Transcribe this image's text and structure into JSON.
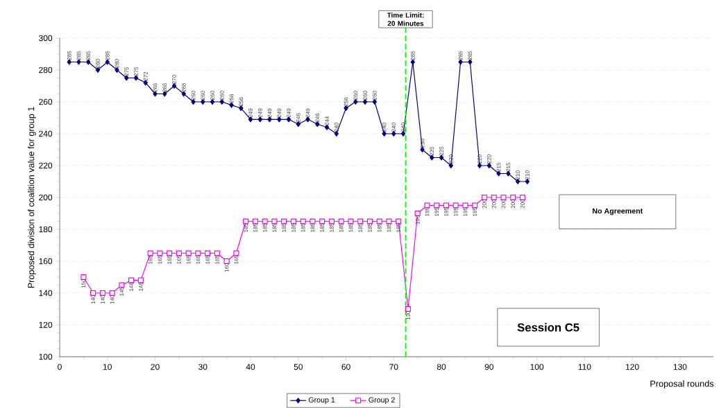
{
  "chart_data": {
    "type": "line",
    "xlabel": "Proposal rounds",
    "ylabel": "Proposed division of coalition value for group 1",
    "xlim": [
      0,
      137
    ],
    "xticks": [
      0,
      10,
      20,
      30,
      40,
      50,
      60,
      70,
      80,
      90,
      100,
      110,
      120,
      130
    ],
    "ylim": [
      100,
      300
    ],
    "yticks": [
      100,
      120,
      140,
      160,
      180,
      200,
      220,
      240,
      260,
      280,
      300
    ],
    "grid": "y",
    "legend": "bottom",
    "data_labels": true,
    "line_style": "solid",
    "series": [
      {
        "name": "Group 1",
        "color": "#000080",
        "marker": "diamond",
        "x": [
          2,
          4,
          6,
          8,
          10,
          12,
          14,
          16,
          18,
          20,
          22,
          24,
          26,
          28,
          30,
          32,
          34,
          36,
          38,
          40,
          42,
          44,
          46,
          48,
          50,
          52,
          54,
          56,
          58,
          60,
          62,
          64,
          66,
          68,
          70,
          72,
          74,
          76,
          78,
          80,
          82,
          84,
          86,
          88,
          90,
          92,
          94,
          96,
          98
        ],
        "values": [
          285,
          285,
          285,
          280,
          285,
          280,
          275,
          275,
          272,
          265,
          265,
          270,
          265,
          260,
          260,
          260,
          260,
          258,
          256,
          249,
          249,
          249,
          249,
          249,
          246,
          249,
          246,
          244,
          240,
          256,
          260,
          260,
          260,
          240,
          240,
          240,
          285,
          230,
          225,
          225,
          220,
          285,
          285,
          220,
          220,
          215,
          215,
          210,
          210
        ]
      },
      {
        "name": "Group 2",
        "color": "#ff00ff",
        "marker": "square",
        "x": [
          5,
          7,
          9,
          11,
          13,
          15,
          17,
          19,
          21,
          23,
          25,
          27,
          29,
          31,
          33,
          35,
          37,
          39,
          41,
          43,
          45,
          47,
          49,
          51,
          53,
          55,
          57,
          59,
          61,
          63,
          65,
          67,
          69,
          71,
          73,
          75,
          77,
          79,
          81,
          83,
          85,
          87,
          89,
          91,
          93,
          95,
          97
        ],
        "values": [
          150,
          140,
          140,
          140,
          145,
          148,
          148,
          165,
          165,
          165,
          165,
          165,
          165,
          165,
          165,
          160,
          165,
          185,
          185,
          185,
          185,
          185,
          185,
          185,
          185,
          185,
          185,
          185,
          185,
          185,
          185,
          185,
          185,
          185,
          130,
          190,
          195,
          195,
          195,
          195,
          195,
          195,
          200,
          200,
          200,
          200,
          200
        ]
      }
    ],
    "ref_lines": [
      {
        "axis": "x",
        "value": 72.5,
        "color": "#00ff00",
        "line_style": "dashed"
      }
    ],
    "annotations": [
      "Time Limit: 20 Minutes",
      "No Agreement",
      "Session C5"
    ]
  }
}
